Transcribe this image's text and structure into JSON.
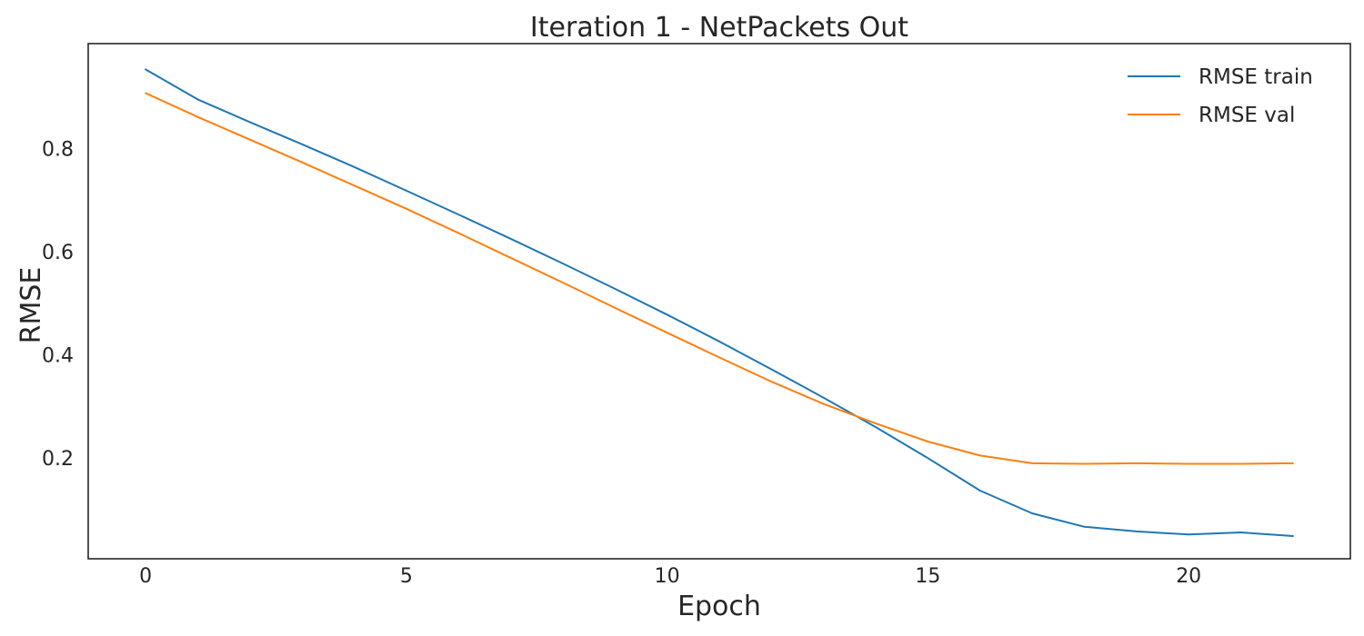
{
  "chart_data": {
    "type": "line",
    "title": "Iteration 1 - NetPackets Out",
    "xlabel": "Epoch",
    "ylabel": "RMSE",
    "x": [
      0,
      1,
      2,
      3,
      4,
      5,
      6,
      7,
      8,
      9,
      10,
      11,
      12,
      13,
      14,
      15,
      16,
      17,
      18,
      19,
      20,
      21,
      22
    ],
    "xlim": [
      -1.1,
      23.1
    ],
    "ylim": [
      0.005,
      1.003
    ],
    "xticks": [
      0,
      5,
      10,
      15,
      20
    ],
    "yticks": [
      0.2,
      0.4,
      0.6,
      0.8
    ],
    "grid": false,
    "legend_position": "top-right",
    "series": [
      {
        "name": "RMSE train",
        "color": "#1f77b4",
        "values": [
          0.953,
          0.895,
          0.851,
          0.808,
          0.764,
          0.718,
          0.672,
          0.625,
          0.577,
          0.528,
          0.478,
          0.426,
          0.372,
          0.317,
          0.26,
          0.2,
          0.137,
          0.093,
          0.067,
          0.058,
          0.052,
          0.056,
          0.049
        ]
      },
      {
        "name": "RMSE val",
        "color": "#ff7f0e",
        "values": [
          0.907,
          0.861,
          0.817,
          0.773,
          0.728,
          0.683,
          0.636,
          0.588,
          0.54,
          0.491,
          0.443,
          0.395,
          0.348,
          0.305,
          0.267,
          0.232,
          0.205,
          0.19,
          0.189,
          0.19,
          0.189,
          0.189,
          0.19
        ]
      }
    ]
  }
}
